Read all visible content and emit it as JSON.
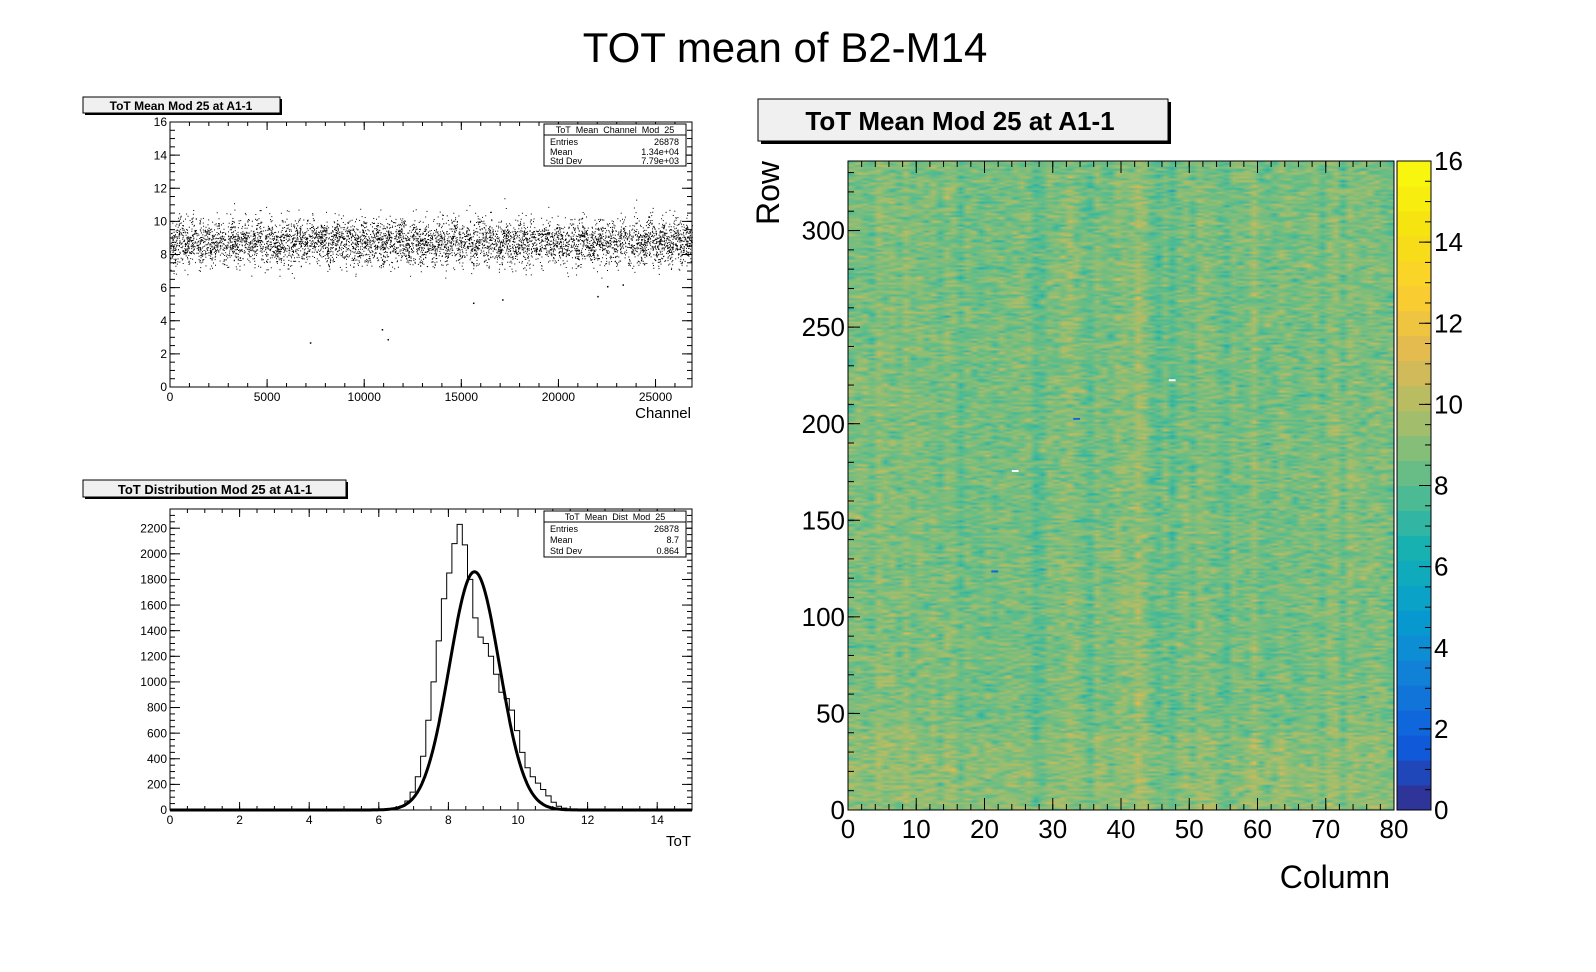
{
  "canvas_title": "TOT mean of B2-M14",
  "chart_data": [
    {
      "type": "scatter",
      "title": "ToT Mean Mod 25 at A1-1",
      "xlabel": "Channel",
      "ylabel": "",
      "xlim": [
        0,
        26878
      ],
      "ylim": [
        0,
        16
      ],
      "xticks": [
        "0",
        "5000",
        "10000",
        "15000",
        "20000",
        "25000"
      ],
      "yticks": [
        "0",
        "2",
        "4",
        "6",
        "8",
        "10",
        "12",
        "14",
        "16"
      ],
      "band": {
        "center": 8.7,
        "std": 0.864,
        "min": 6.6,
        "max": 11.6
      },
      "outliers": [
        {
          "x": 7200,
          "y": 2.7
        },
        {
          "x": 10900,
          "y": 3.5
        },
        {
          "x": 11200,
          "y": 2.9
        },
        {
          "x": 15600,
          "y": 5.1
        },
        {
          "x": 17100,
          "y": 5.3
        },
        {
          "x": 22000,
          "y": 5.5
        },
        {
          "x": 22500,
          "y": 6.1
        },
        {
          "x": 23300,
          "y": 6.2
        }
      ],
      "stats": {
        "name": "ToT_Mean_Channel_Mod_25",
        "rows": [
          {
            "label": "Entries",
            "value": "26878"
          },
          {
            "label": "Mean",
            "value": "1.34e+04"
          },
          {
            "label": "Std Dev",
            "value": "7.79e+03"
          }
        ]
      }
    },
    {
      "type": "bar",
      "title": "ToT Distribution Mod 25 at A1-1",
      "xlabel": "ToT",
      "ylabel": "",
      "xlim": [
        0,
        15
      ],
      "ylim": [
        0,
        2350
      ],
      "xticks": [
        "0",
        "2",
        "4",
        "6",
        "8",
        "10",
        "12",
        "14"
      ],
      "yticks": [
        "0",
        "200",
        "400",
        "600",
        "800",
        "1000",
        "1200",
        "1400",
        "1600",
        "1800",
        "2000",
        "2200"
      ],
      "bin_width": 0.15,
      "bin_start": 6.3,
      "bin_counts": [
        5,
        12,
        30,
        70,
        140,
        260,
        420,
        700,
        1000,
        1320,
        1650,
        1850,
        2080,
        2230,
        2070,
        1800,
        1500,
        1350,
        1300,
        1200,
        1060,
        920,
        870,
        780,
        620,
        450,
        330,
        260,
        210,
        160,
        110,
        60,
        30,
        15,
        8
      ],
      "fit": {
        "type": "gaus",
        "constant": 1860,
        "mean": 8.75,
        "sigma": 0.72
      },
      "stats": {
        "name": "ToT_Mean_Dist_Mod_25",
        "rows": [
          {
            "label": "Entries",
            "value": "26878"
          },
          {
            "label": "Mean",
            "value": "8.7"
          },
          {
            "label": "Std Dev",
            "value": "0.864"
          }
        ]
      }
    },
    {
      "type": "heatmap",
      "title": "ToT Mean Mod 25 at A1-1",
      "xlabel": "Column",
      "ylabel": "Row",
      "xlim": [
        0,
        80
      ],
      "ylim": [
        0,
        336
      ],
      "zlim": [
        0,
        16
      ],
      "xticks": [
        "0",
        "10",
        "20",
        "30",
        "40",
        "50",
        "60",
        "70",
        "80"
      ],
      "yticks": [
        "0",
        "50",
        "100",
        "150",
        "200",
        "250",
        "300"
      ],
      "zticks": [
        "0",
        "2",
        "4",
        "6",
        "8",
        "10",
        "12",
        "14",
        "16"
      ],
      "typical_value": 8.7,
      "value_spread": 0.864,
      "special_cells": [
        {
          "col": 47,
          "row": 222,
          "value": 16
        },
        {
          "col": 24,
          "row": 175,
          "value": 16
        },
        {
          "col": 33,
          "row": 202,
          "value": 2
        },
        {
          "col": 21,
          "row": 123,
          "value": 2
        }
      ]
    }
  ]
}
